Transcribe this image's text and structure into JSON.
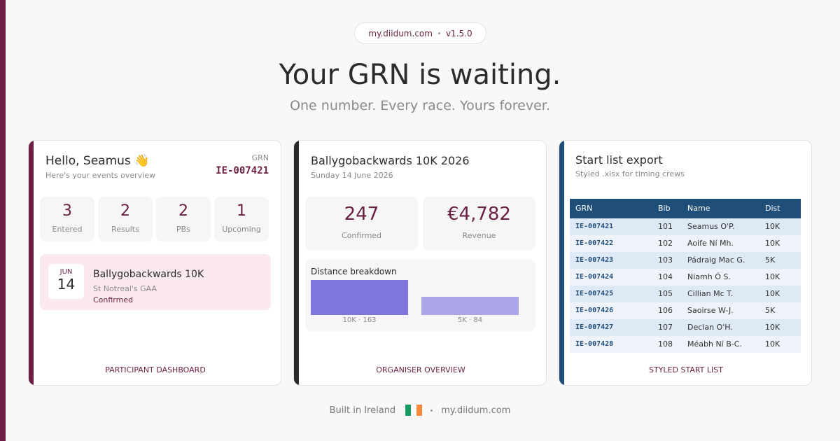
{
  "header": {
    "domain": "my.diidum.com",
    "version": "v1.5.0",
    "title": "Your GRN is waiting.",
    "subtitle": "One number. Every race. Yours forever."
  },
  "participant": {
    "greeting": "Hello, Seamus 👋",
    "intro": "Here's your events overview",
    "grn_label": "GRN",
    "grn": "IE-007421",
    "stats": [
      {
        "value": "3",
        "label": "Entered"
      },
      {
        "value": "2",
        "label": "Results"
      },
      {
        "value": "2",
        "label": "PBs"
      },
      {
        "value": "1",
        "label": "Upcoming"
      }
    ],
    "event": {
      "month": "JUN",
      "day": "14",
      "name": "Ballygobackwards 10K",
      "club": "St Notreal's GAA",
      "status": "Confirmed"
    },
    "footer": "PARTICIPANT DASHBOARD"
  },
  "organiser": {
    "title": "Ballygobackwards 10K 2026",
    "date": "Sunday 14 June 2026",
    "stats": [
      {
        "value": "247",
        "label": "Confirmed"
      },
      {
        "value": "€4,782",
        "label": "Revenue"
      }
    ],
    "breakdown": {
      "title": "Distance breakdown",
      "values": [
        163,
        84
      ],
      "value_labels": [
        "10K · 163",
        "5K · 84"
      ],
      "colors": [
        "#7f76dd",
        "#aba5ea"
      ]
    },
    "footer": "ORGANISER OVERVIEW"
  },
  "startlist": {
    "title": "Start list export",
    "subtitle": "Styled .xlsx for timing crews",
    "table": {
      "columns": [
        "GRN",
        "Bib",
        "Name",
        "Dist"
      ],
      "rows": [
        [
          "IE-007421",
          "101",
          "Seamus O'P.",
          "10K"
        ],
        [
          "IE-007422",
          "102",
          "Aoife Ní Mh.",
          "10K"
        ],
        [
          "IE-007423",
          "103",
          "Pádraig Mac G.",
          "5K"
        ],
        [
          "IE-007424",
          "104",
          "Niamh Ó S.",
          "10K"
        ],
        [
          "IE-007425",
          "105",
          "Cillian Mc T.",
          "10K"
        ],
        [
          "IE-007426",
          "106",
          "Saoirse W-J.",
          "5K"
        ],
        [
          "IE-007427",
          "107",
          "Declan O'H.",
          "10K"
        ],
        [
          "IE-007428",
          "108",
          "Méabh Ní B-C.",
          "10K"
        ]
      ]
    },
    "footer": "STYLED START LIST"
  },
  "footer": {
    "built": "Built in Ireland",
    "domain": "my.diidum.com"
  }
}
